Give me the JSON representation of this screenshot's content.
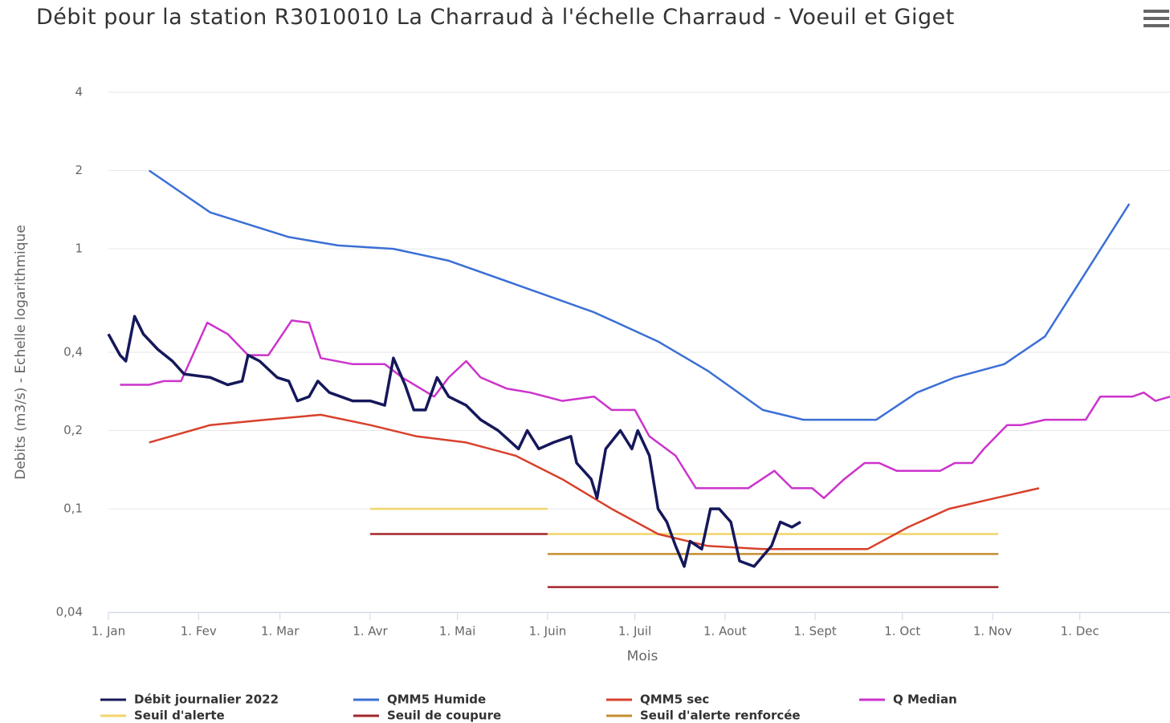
{
  "chart_data": {
    "type": "line",
    "title": "Débit pour la station R3010010 La Charraud à l'échelle Charraud - Voeuil et Giget",
    "x_label": "Mois",
    "y_label": "Debits (m3/s) - Echelle logarithmique",
    "y_log": true,
    "grid": true,
    "legend": "bottom",
    "xlim": [
      0,
      365
    ],
    "xticks": [
      {
        "value": 0,
        "label": "1. Jan"
      },
      {
        "value": 31,
        "label": "1. Fev"
      },
      {
        "value": 59,
        "label": "1. Mar"
      },
      {
        "value": 90,
        "label": "1. Avr"
      },
      {
        "value": 120,
        "label": "1. Mai"
      },
      {
        "value": 151,
        "label": "1. Juin"
      },
      {
        "value": 181,
        "label": "1. Juil"
      },
      {
        "value": 212,
        "label": "1. Aout"
      },
      {
        "value": 243,
        "label": "1. Sept"
      },
      {
        "value": 273,
        "label": "1. Oct"
      },
      {
        "value": 304,
        "label": "1. Nov"
      },
      {
        "value": 334,
        "label": "1. Dec"
      }
    ],
    "ylim": [
      0.04,
      4
    ],
    "yticks": [
      {
        "value": 0.04,
        "label": "0,04"
      },
      {
        "value": 0.1,
        "label": "0,1"
      },
      {
        "value": 0.2,
        "label": "0,2"
      },
      {
        "value": 0.4,
        "label": "0,4"
      },
      1,
      2,
      4
    ],
    "series": [
      {
        "name": "Débit journalier 2022",
        "color": "#15185a",
        "x": [
          0,
          4,
          6,
          9,
          12,
          17,
          22,
          26,
          35,
          41,
          46,
          48,
          52,
          58,
          62,
          65,
          69,
          72,
          76,
          84,
          90,
          95,
          98,
          102,
          105,
          109,
          113,
          117,
          123,
          128,
          134,
          141,
          144,
          148,
          153,
          159,
          161,
          166,
          168,
          171,
          176,
          180,
          182,
          186,
          189,
          192,
          195,
          198,
          200,
          204,
          207,
          210,
          214,
          217,
          222,
          228,
          231,
          235,
          238
        ],
        "values": [
          0.47,
          0.39,
          0.37,
          0.55,
          0.47,
          0.41,
          0.37,
          0.33,
          0.32,
          0.3,
          0.31,
          0.39,
          0.37,
          0.32,
          0.31,
          0.26,
          0.27,
          0.31,
          0.28,
          0.26,
          0.26,
          0.25,
          0.38,
          0.3,
          0.24,
          0.24,
          0.32,
          0.27,
          0.25,
          0.22,
          0.2,
          0.17,
          0.2,
          0.17,
          0.18,
          0.19,
          0.15,
          0.13,
          0.11,
          0.17,
          0.2,
          0.17,
          0.2,
          0.16,
          0.1,
          0.089,
          0.072,
          0.06,
          0.075,
          0.07,
          0.1,
          0.1,
          0.089,
          0.063,
          0.06,
          0.072,
          0.089,
          0.085,
          0.089
        ]
      },
      {
        "name": "QMM5 Humide",
        "color": "#3b6fd6",
        "x": [
          14,
          35,
          62,
          79,
          98,
          117,
          140,
          167,
          189,
          206,
          225,
          239,
          253,
          264,
          278,
          291,
          308,
          322,
          336,
          351
        ],
        "values": [
          2,
          1.38,
          1.11,
          1.03,
          1,
          0.9,
          0.73,
          0.57,
          0.44,
          0.34,
          0.24,
          0.22,
          0.22,
          0.22,
          0.28,
          0.32,
          0.36,
          0.46,
          0.81,
          1.49
        ]
      },
      {
        "name": "QMM5 sec",
        "color": "#d8412c",
        "x": [
          14,
          35,
          54,
          73,
          90,
          106,
          123,
          140,
          156,
          173,
          189,
          206,
          225,
          261,
          275,
          289,
          305,
          320
        ],
        "values": [
          0.18,
          0.21,
          0.22,
          0.23,
          0.21,
          0.19,
          0.18,
          0.16,
          0.13,
          0.1,
          0.08,
          0.072,
          0.07,
          0.07,
          0.085,
          0.1,
          0.11,
          0.12
        ]
      },
      {
        "name": "Q Median",
        "color": "#cc33cc",
        "x": [
          4,
          8,
          14,
          19,
          25,
          29,
          34,
          41,
          48,
          55,
          63,
          69,
          73,
          84,
          95,
          101,
          112,
          117,
          123,
          128,
          137,
          145,
          156,
          167,
          173,
          181,
          186,
          195,
          202,
          220,
          229,
          235,
          242,
          246,
          253,
          260,
          265,
          271,
          286,
          291,
          297,
          301,
          309,
          314,
          322,
          336,
          341,
          352,
          356,
          360,
          365
        ],
        "values": [
          0.3,
          0.3,
          0.3,
          0.31,
          0.31,
          0.39,
          0.52,
          0.47,
          0.39,
          0.39,
          0.53,
          0.52,
          0.38,
          0.36,
          0.36,
          0.32,
          0.27,
          0.32,
          0.37,
          0.32,
          0.29,
          0.28,
          0.26,
          0.27,
          0.24,
          0.24,
          0.19,
          0.16,
          0.12,
          0.12,
          0.14,
          0.12,
          0.12,
          0.11,
          0.13,
          0.15,
          0.15,
          0.14,
          0.14,
          0.15,
          0.15,
          0.17,
          0.21,
          0.21,
          0.22,
          0.22,
          0.27,
          0.27,
          0.28,
          0.26,
          0.27
        ]
      },
      {
        "name": "Seuil d'alerte",
        "color": "#f2d46c",
        "x": [
          90,
          151,
          151,
          151,
          306
        ],
        "values": [
          0.1,
          0.1,
          null,
          0.08,
          0.08
        ]
      },
      {
        "name": "Seuil de coupure",
        "color": "#a2262b",
        "x": [
          90,
          151,
          151,
          151,
          306
        ],
        "values": [
          0.08,
          0.08,
          null,
          0.05,
          0.05
        ]
      },
      {
        "name": "Seuil d'alerte renforcée",
        "color": "#c58e30",
        "x": [
          151,
          306
        ],
        "values": [
          0.067,
          0.067
        ]
      }
    ]
  }
}
